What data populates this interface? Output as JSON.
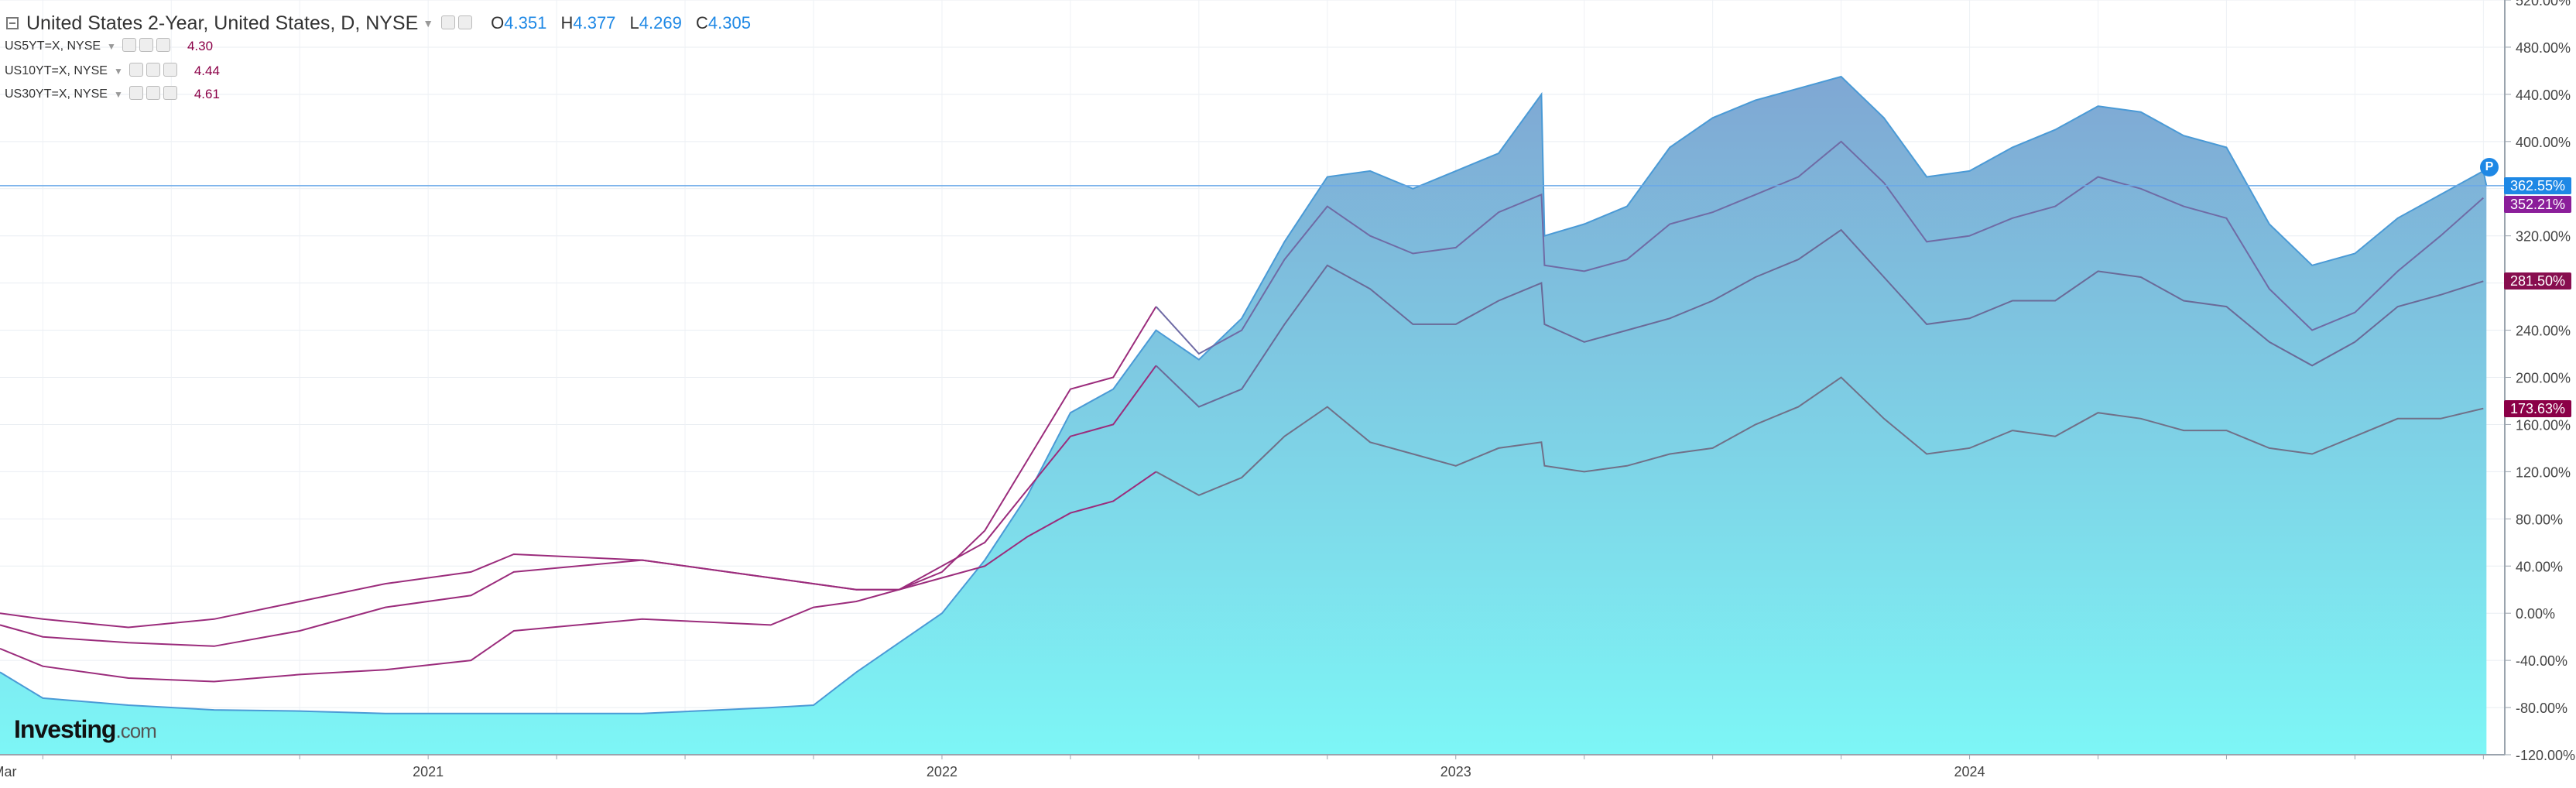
{
  "header": {
    "title": "United States 2-Year, United States, D, NYSE",
    "ohlc": [
      {
        "key": "O",
        "value": "4.351"
      },
      {
        "key": "H",
        "value": "4.377"
      },
      {
        "key": "L",
        "value": "4.269"
      },
      {
        "key": "C",
        "value": "4.305"
      }
    ]
  },
  "legend": [
    {
      "symbol": "US5YT=X, NYSE",
      "value": "4.30"
    },
    {
      "symbol": "US10YT=X, NYSE",
      "value": "4.44"
    },
    {
      "symbol": "US30YT=X, NYSE",
      "value": "4.61"
    }
  ],
  "brand": {
    "name": "Investing",
    "suffix": ".com"
  },
  "pin_label": "P",
  "colors": {
    "area_fill_top": "#7fa7d3",
    "area_fill_bottom": "#7df6f6",
    "area_line": "#4a9ad6",
    "line_5y": "#6f6ba5",
    "line_10y": "#6a6a98",
    "line_30y": "#707088",
    "line_early": "#9b2c7c",
    "crosshair": "#6aa8e8",
    "badge_2y": "#1e88e5",
    "badge_5y": "#8b1e9a",
    "badge_10y": "#880e4f",
    "badge_30y": "#8b0047"
  },
  "chart_data": {
    "type": "area",
    "y_unit": "%",
    "y_ticks": [
      "520.00%",
      "480.00%",
      "440.00%",
      "400.00%",
      "360.00%",
      "320.00%",
      "280.00%",
      "240.00%",
      "200.00%",
      "160.00%",
      "120.00%",
      "80.00%",
      "40.00%",
      "0.00%",
      "-40.00%",
      "-80.00%",
      "-120.00%"
    ],
    "ylim": [
      -120,
      520
    ],
    "x_ticks": [
      "Mar",
      "2021",
      "2022",
      "2023",
      "2024"
    ],
    "last_values": [
      {
        "series": "US2YT=X",
        "label": "362.55%",
        "value": 362.55
      },
      {
        "series": "US5YT=X",
        "label": "352.21%",
        "value": 352.21
      },
      {
        "series": "US10YT=X",
        "label": "281.50%",
        "value": 281.5
      },
      {
        "series": "US30YT=X",
        "label": "173.63%",
        "value": 173.63
      }
    ],
    "series": [
      {
        "name": "United States 2-Year",
        "style": "area",
        "points": [
          [
            "2020-03",
            -50
          ],
          [
            "2020-04",
            -72
          ],
          [
            "2020-06",
            -78
          ],
          [
            "2020-08",
            -82
          ],
          [
            "2020-10",
            -83
          ],
          [
            "2020-12",
            -85
          ],
          [
            "2021-03",
            -85
          ],
          [
            "2021-06",
            -85
          ],
          [
            "2021-09",
            -80
          ],
          [
            "2021-10",
            -78
          ],
          [
            "2021-11",
            -50
          ],
          [
            "2021-12",
            -25
          ],
          [
            "2022-01",
            0
          ],
          [
            "2022-02",
            45
          ],
          [
            "2022-03",
            100
          ],
          [
            "2022-04",
            170
          ],
          [
            "2022-05",
            190
          ],
          [
            "2022-06",
            240
          ],
          [
            "2022-07",
            215
          ],
          [
            "2022-08",
            250
          ],
          [
            "2022-09",
            315
          ],
          [
            "2022-10",
            370
          ],
          [
            "2022-11",
            375
          ],
          [
            "2022-12",
            360
          ],
          [
            "2023-01",
            375
          ],
          [
            "2023-02",
            390
          ],
          [
            "2023-03",
            440
          ],
          [
            "2023-03",
            320
          ],
          [
            "2023-04",
            330
          ],
          [
            "2023-05",
            345
          ],
          [
            "2023-06",
            395
          ],
          [
            "2023-07",
            420
          ],
          [
            "2023-08",
            435
          ],
          [
            "2023-09",
            445
          ],
          [
            "2023-10",
            455
          ],
          [
            "2023-11",
            420
          ],
          [
            "2023-12",
            370
          ],
          [
            "2024-01",
            375
          ],
          [
            "2024-02",
            395
          ],
          [
            "2024-03",
            410
          ],
          [
            "2024-04",
            430
          ],
          [
            "2024-05",
            425
          ],
          [
            "2024-06",
            405
          ],
          [
            "2024-07",
            395
          ],
          [
            "2024-08",
            330
          ],
          [
            "2024-09",
            295
          ],
          [
            "2024-10",
            305
          ],
          [
            "2024-11",
            335
          ],
          [
            "2024-12",
            355
          ],
          [
            "2025-01",
            375
          ],
          [
            "2025-01",
            362.55
          ]
        ]
      },
      {
        "name": "US5YT=X",
        "style": "line",
        "points": [
          [
            "2020-03",
            -30
          ],
          [
            "2020-04",
            -45
          ],
          [
            "2020-06",
            -55
          ],
          [
            "2020-08",
            -58
          ],
          [
            "2020-10",
            -52
          ],
          [
            "2020-12",
            -48
          ],
          [
            "2021-02",
            -40
          ],
          [
            "2021-03",
            -15
          ],
          [
            "2021-06",
            -5
          ],
          [
            "2021-09",
            -10
          ],
          [
            "2021-10",
            5
          ],
          [
            "2021-11",
            10
          ],
          [
            "2021-12",
            20
          ],
          [
            "2022-01",
            35
          ],
          [
            "2022-02",
            70
          ],
          [
            "2022-03",
            130
          ],
          [
            "2022-04",
            190
          ],
          [
            "2022-05",
            200
          ],
          [
            "2022-06",
            260
          ],
          [
            "2022-07",
            220
          ],
          [
            "2022-08",
            240
          ],
          [
            "2022-09",
            300
          ],
          [
            "2022-10",
            345
          ],
          [
            "2022-11",
            320
          ],
          [
            "2022-12",
            305
          ],
          [
            "2023-01",
            310
          ],
          [
            "2023-02",
            340
          ],
          [
            "2023-03",
            355
          ],
          [
            "2023-03",
            295
          ],
          [
            "2023-04",
            290
          ],
          [
            "2023-05",
            300
          ],
          [
            "2023-06",
            330
          ],
          [
            "2023-07",
            340
          ],
          [
            "2023-08",
            355
          ],
          [
            "2023-09",
            370
          ],
          [
            "2023-10",
            400
          ],
          [
            "2023-11",
            365
          ],
          [
            "2023-12",
            315
          ],
          [
            "2024-01",
            320
          ],
          [
            "2024-02",
            335
          ],
          [
            "2024-03",
            345
          ],
          [
            "2024-04",
            370
          ],
          [
            "2024-05",
            360
          ],
          [
            "2024-06",
            345
          ],
          [
            "2024-07",
            335
          ],
          [
            "2024-08",
            275
          ],
          [
            "2024-09",
            240
          ],
          [
            "2024-10",
            255
          ],
          [
            "2024-11",
            290
          ],
          [
            "2024-12",
            320
          ],
          [
            "2025-01",
            352.21
          ]
        ]
      },
      {
        "name": "US10YT=X",
        "style": "line",
        "points": [
          [
            "2020-03",
            -10
          ],
          [
            "2020-04",
            -20
          ],
          [
            "2020-06",
            -25
          ],
          [
            "2020-08",
            -28
          ],
          [
            "2020-10",
            -15
          ],
          [
            "2020-12",
            5
          ],
          [
            "2021-02",
            15
          ],
          [
            "2021-03",
            35
          ],
          [
            "2021-06",
            45
          ],
          [
            "2021-09",
            30
          ],
          [
            "2021-10",
            25
          ],
          [
            "2021-11",
            20
          ],
          [
            "2021-12",
            20
          ],
          [
            "2022-01",
            40
          ],
          [
            "2022-02",
            60
          ],
          [
            "2022-03",
            105
          ],
          [
            "2022-04",
            150
          ],
          [
            "2022-05",
            160
          ],
          [
            "2022-06",
            210
          ],
          [
            "2022-07",
            175
          ],
          [
            "2022-08",
            190
          ],
          [
            "2022-09",
            245
          ],
          [
            "2022-10",
            295
          ],
          [
            "2022-11",
            275
          ],
          [
            "2022-12",
            245
          ],
          [
            "2023-01",
            245
          ],
          [
            "2023-02",
            265
          ],
          [
            "2023-03",
            280
          ],
          [
            "2023-03",
            245
          ],
          [
            "2023-04",
            230
          ],
          [
            "2023-05",
            240
          ],
          [
            "2023-06",
            250
          ],
          [
            "2023-07",
            265
          ],
          [
            "2023-08",
            285
          ],
          [
            "2023-09",
            300
          ],
          [
            "2023-10",
            325
          ],
          [
            "2023-11",
            285
          ],
          [
            "2023-12",
            245
          ],
          [
            "2024-01",
            250
          ],
          [
            "2024-02",
            265
          ],
          [
            "2024-03",
            265
          ],
          [
            "2024-04",
            290
          ],
          [
            "2024-05",
            285
          ],
          [
            "2024-06",
            265
          ],
          [
            "2024-07",
            260
          ],
          [
            "2024-08",
            230
          ],
          [
            "2024-09",
            210
          ],
          [
            "2024-10",
            230
          ],
          [
            "2024-11",
            260
          ],
          [
            "2024-12",
            270
          ],
          [
            "2025-01",
            281.5
          ]
        ]
      },
      {
        "name": "US30YT=X",
        "style": "line",
        "points": [
          [
            "2020-03",
            0
          ],
          [
            "2020-04",
            -5
          ],
          [
            "2020-06",
            -12
          ],
          [
            "2020-08",
            -5
          ],
          [
            "2020-10",
            10
          ],
          [
            "2020-12",
            25
          ],
          [
            "2021-02",
            35
          ],
          [
            "2021-03",
            50
          ],
          [
            "2021-06",
            45
          ],
          [
            "2021-09",
            30
          ],
          [
            "2021-10",
            25
          ],
          [
            "2021-11",
            20
          ],
          [
            "2021-12",
            20
          ],
          [
            "2022-01",
            30
          ],
          [
            "2022-02",
            40
          ],
          [
            "2022-03",
            65
          ],
          [
            "2022-04",
            85
          ],
          [
            "2022-05",
            95
          ],
          [
            "2022-06",
            120
          ],
          [
            "2022-07",
            100
          ],
          [
            "2022-08",
            115
          ],
          [
            "2022-09",
            150
          ],
          [
            "2022-10",
            175
          ],
          [
            "2022-11",
            145
          ],
          [
            "2022-12",
            135
          ],
          [
            "2023-01",
            125
          ],
          [
            "2023-02",
            140
          ],
          [
            "2023-03",
            145
          ],
          [
            "2023-03",
            125
          ],
          [
            "2023-04",
            120
          ],
          [
            "2023-05",
            125
          ],
          [
            "2023-06",
            135
          ],
          [
            "2023-07",
            140
          ],
          [
            "2023-08",
            160
          ],
          [
            "2023-09",
            175
          ],
          [
            "2023-10",
            200
          ],
          [
            "2023-11",
            165
          ],
          [
            "2023-12",
            135
          ],
          [
            "2024-01",
            140
          ],
          [
            "2024-02",
            155
          ],
          [
            "2024-03",
            150
          ],
          [
            "2024-04",
            170
          ],
          [
            "2024-05",
            165
          ],
          [
            "2024-06",
            155
          ],
          [
            "2024-07",
            155
          ],
          [
            "2024-08",
            140
          ],
          [
            "2024-09",
            135
          ],
          [
            "2024-10",
            150
          ],
          [
            "2024-11",
            165
          ],
          [
            "2024-12",
            165
          ],
          [
            "2025-01",
            173.63
          ]
        ]
      }
    ]
  }
}
